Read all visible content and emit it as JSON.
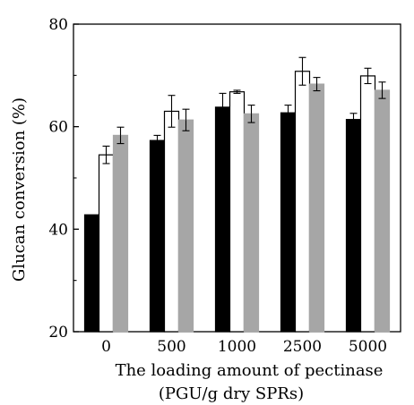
{
  "chart_data": {
    "type": "bar",
    "title": "",
    "xlabel": "The loading amount of pectinase",
    "xlabel_unit": "(PGU/g dry SPRs)",
    "ylabel": "Glucan conversion (%)",
    "ylim": [
      20,
      80
    ],
    "yticks": [
      "20",
      "40",
      "60",
      "80"
    ],
    "categories": [
      "0",
      "500",
      "1000",
      "2500",
      "5000"
    ],
    "series": [
      {
        "fill": "#000000",
        "values": [
          42.8,
          57.3,
          63.8,
          62.7,
          61.4
        ],
        "errors": [
          0,
          1.0,
          2.7,
          1.5,
          1.2
        ]
      },
      {
        "fill": "#ffffff",
        "values": [
          54.5,
          63.0,
          66.8,
          70.8,
          69.9
        ],
        "errors": [
          1.7,
          3.1,
          0.3,
          2.7,
          1.5
        ]
      },
      {
        "fill": "#a6a6a6",
        "values": [
          58.3,
          61.3,
          62.5,
          68.3,
          67.1
        ],
        "errors": [
          1.6,
          2.1,
          1.7,
          1.3,
          1.6
        ]
      }
    ],
    "grid": false,
    "legend": "none"
  }
}
